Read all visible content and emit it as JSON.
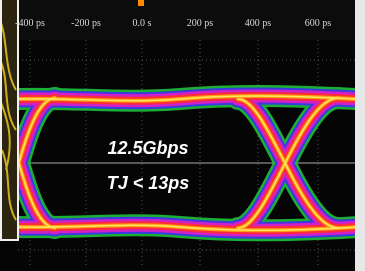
{
  "axis": {
    "ticks": [
      "-400 ps",
      "-200 ps",
      "0.0 s",
      "200 ps",
      "400 ps",
      "600 ps"
    ]
  },
  "annotation": {
    "lines": [
      "12.5Gbps",
      "TJ < 13ps"
    ]
  }
}
